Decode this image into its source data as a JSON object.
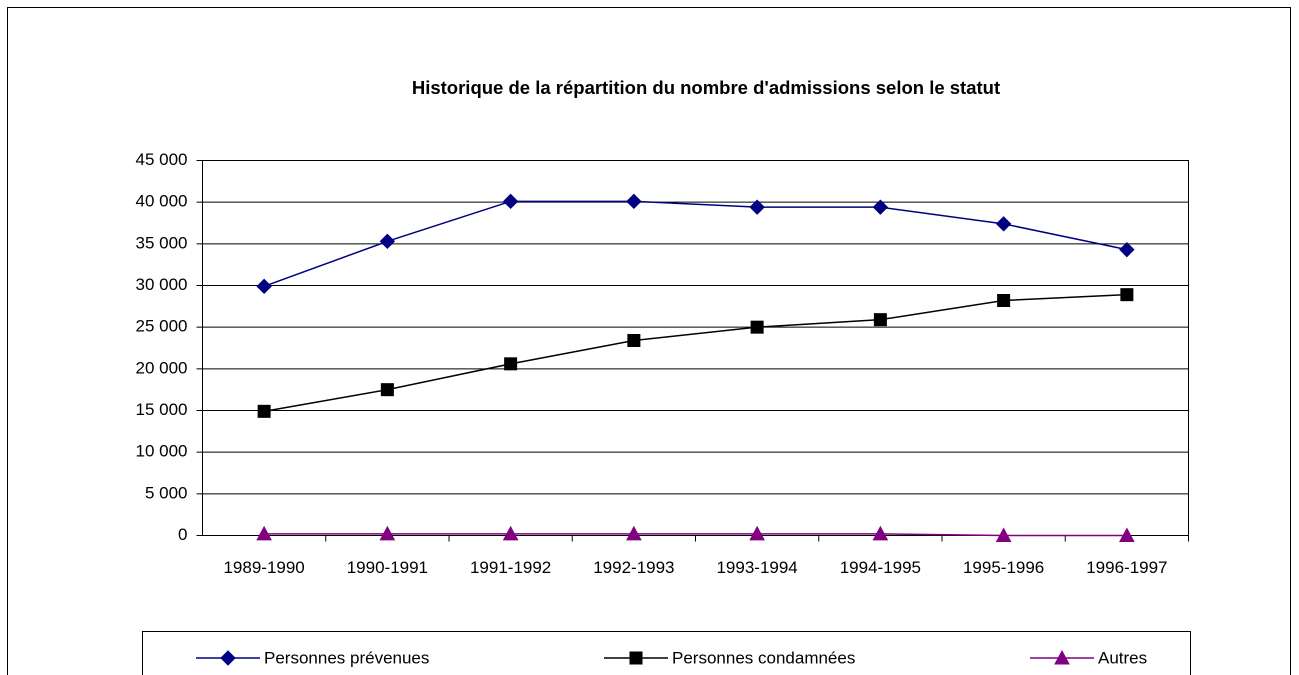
{
  "chart_data": {
    "type": "line",
    "title": "Historique de la répartition du nombre d'admissions selon le statut",
    "categories": [
      "1989-1990",
      "1990-1991",
      "1991-1992",
      "1992-1993",
      "1993-1994",
      "1994-1995",
      "1995-1996",
      "1996-1997"
    ],
    "series": [
      {
        "name": "Personnes prévenues",
        "color": "#000080",
        "marker": "diamond",
        "values": [
          29900,
          35300,
          40100,
          40100,
          39400,
          39400,
          37400,
          34300
        ]
      },
      {
        "name": "Personnes condamnées",
        "color": "#000000",
        "marker": "square",
        "values": [
          14900,
          17500,
          20600,
          23400,
          25000,
          25900,
          28200,
          28900
        ]
      },
      {
        "name": "Autres",
        "color": "#800080",
        "marker": "triangle",
        "values": [
          200,
          200,
          200,
          200,
          200,
          200,
          0,
          0
        ]
      }
    ],
    "ylim": [
      0,
      45000
    ],
    "yticks": [
      0,
      {
        "value": 5000,
        "label": "5 000"
      },
      {
        "value": 10000,
        "label": "10 000"
      },
      {
        "value": 15000,
        "label": "15 000"
      },
      {
        "value": 20000,
        "label": "20 000"
      },
      {
        "value": 25000,
        "label": "25 000"
      },
      {
        "value": 30000,
        "label": "30 000"
      },
      {
        "value": 35000,
        "label": "35 000"
      },
      {
        "value": 40000,
        "label": "40 000"
      },
      {
        "value": 45000,
        "label": "45 000"
      }
    ],
    "grid": true,
    "legend": "bottom"
  }
}
